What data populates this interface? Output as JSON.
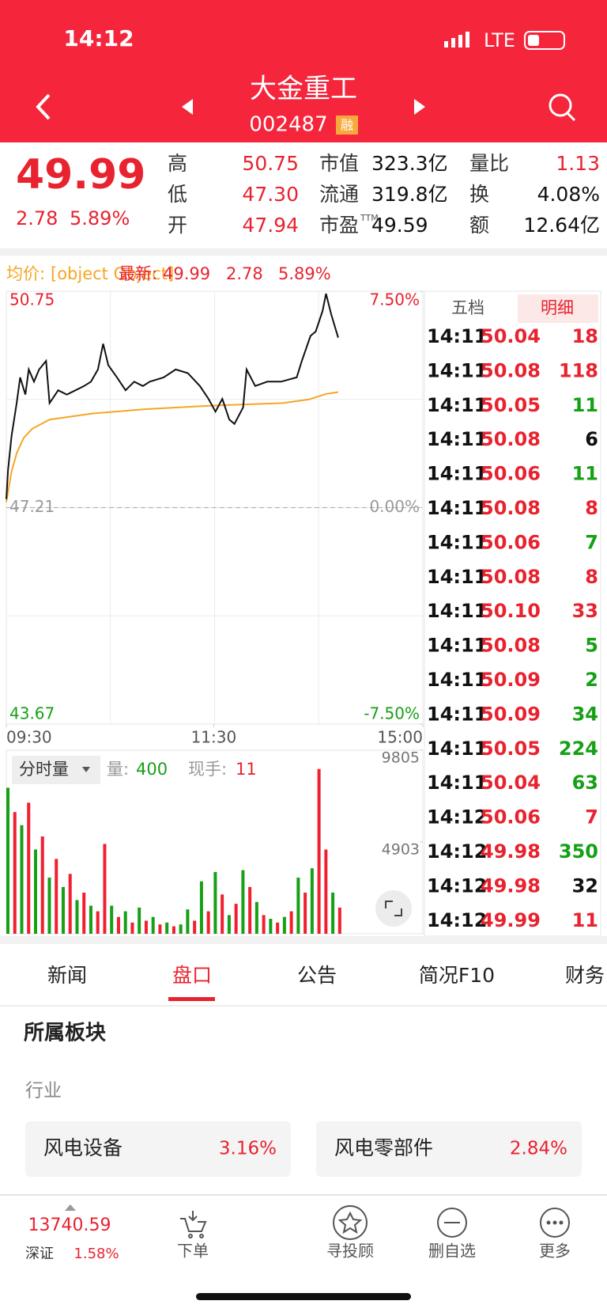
{
  "status": {
    "time": "14:12",
    "network": "LTE"
  },
  "header": {
    "title": "大金重工",
    "code": "002487",
    "badge": "融"
  },
  "quote": {
    "price": "49.99",
    "change": "2.78",
    "pct": "5.89%",
    "stats": [
      {
        "label": "高",
        "value": "50.75"
      },
      {
        "label": "低",
        "value": "47.30"
      },
      {
        "label": "开",
        "value": "47.94"
      },
      {
        "label": "市值",
        "value": "323.3亿"
      },
      {
        "label": "流通",
        "value": "319.8亿"
      },
      {
        "label": "市盈",
        "sup": "TTM",
        "value": "49.59"
      },
      {
        "label": "量比",
        "value": "1.13"
      },
      {
        "label": "换",
        "value": "4.08%"
      },
      {
        "label": "额",
        "value": "12.64亿"
      }
    ]
  },
  "chart": {
    "avg_label": "均价:",
    "avg": {
      "color": "#f5a623",
      "x": [
        0,
        3,
        6,
        10,
        15,
        25,
        50,
        80,
        120,
        160,
        175,
        185,
        192
      ],
      "values": [
        47.3,
        47.8,
        48.1,
        48.35,
        48.5,
        48.65,
        48.75,
        48.82,
        48.88,
        48.92,
        48.98,
        49.07,
        49.1
      ]
    },
    "latest_label": "最新:",
    "latest": "49.99",
    "change": "2.78",
    "pct": "5.89%",
    "xlim": [
      0,
      241
    ],
    "xticks": [
      {
        "value": 0,
        "label": "09:30"
      },
      {
        "value": 120,
        "label": "11:30"
      },
      {
        "value": 241,
        "label": "15:00"
      }
    ],
    "ylim": [
      43.67,
      50.75
    ],
    "yticks": [
      50.75,
      47.21,
      43.67
    ],
    "y2lim": [
      -7.5,
      7.5
    ],
    "y2ticks": [
      {
        "value": 7.5,
        "label": "7.50%"
      },
      {
        "value": 0,
        "label": "0.00%"
      },
      {
        "value": -7.5,
        "label": "-7.50%"
      }
    ],
    "price": {
      "color": "#111111",
      "x": [
        0,
        1,
        3,
        6,
        8,
        11,
        13,
        16,
        19,
        23,
        25,
        30,
        35,
        40,
        45,
        49,
        53,
        56,
        59,
        64,
        69,
        74,
        79,
        83,
        91,
        98,
        105,
        112,
        117,
        121,
        125,
        129,
        132,
        137,
        139,
        144,
        151,
        159,
        168,
        171,
        176,
        179,
        183,
        185,
        188,
        192
      ],
      "values": [
        47.35,
        47.83,
        48.38,
        48.92,
        49.34,
        49.06,
        49.47,
        49.27,
        49.47,
        49.61,
        48.92,
        49.13,
        49.06,
        49.13,
        49.2,
        49.27,
        49.47,
        49.89,
        49.54,
        49.34,
        49.13,
        49.27,
        49.2,
        49.27,
        49.34,
        49.47,
        49.41,
        49.2,
        48.99,
        48.78,
        48.99,
        48.65,
        48.58,
        48.85,
        49.47,
        49.2,
        49.27,
        49.27,
        49.34,
        49.61,
        50.02,
        50.09,
        50.43,
        50.71,
        50.37,
        49.99
      ]
    },
    "volume": {
      "label": "分时量",
      "vol_label": "量:",
      "vol": "400",
      "hand_label": "现手:",
      "hand": "11",
      "ylim": [
        0,
        9805
      ],
      "yticks": [
        9805,
        4903
      ],
      "x": [
        0,
        4,
        8,
        12,
        16,
        20,
        24,
        28,
        32,
        36,
        40,
        44,
        48,
        52,
        56,
        60,
        64,
        68,
        72,
        76,
        80,
        84,
        88,
        92,
        96,
        100,
        104,
        108,
        112,
        116,
        120,
        124,
        128,
        132,
        136,
        140,
        144,
        148,
        152,
        156,
        160,
        164,
        168,
        172,
        176,
        180,
        184,
        188,
        192
      ],
      "values": [
        7800,
        6500,
        5800,
        7000,
        4500,
        5200,
        3000,
        4000,
        2500,
        3200,
        1800,
        2200,
        1500,
        1200,
        4800,
        1500,
        900,
        1200,
        600,
        1400,
        700,
        900,
        500,
        600,
        400,
        500,
        1300,
        700,
        2800,
        1200,
        3300,
        2100,
        1000,
        1600,
        3400,
        2500,
        1700,
        1000,
        800,
        600,
        900,
        1200,
        3000,
        2200,
        3500,
        8800,
        4500,
        2200,
        1400
      ],
      "colors": [
        "#16a016",
        "#f02030",
        "#16a016",
        "#f02030",
        "#16a016",
        "#f02030",
        "#16a016",
        "#f02030",
        "#16a016",
        "#f02030",
        "#16a016",
        "#f02030",
        "#16a016",
        "#f02030",
        "#f02030",
        "#16a016",
        "#f02030",
        "#16a016",
        "#f02030",
        "#16a016",
        "#f02030",
        "#16a016",
        "#f02030",
        "#16a016",
        "#f02030",
        "#16a016",
        "#16a016",
        "#f02030",
        "#16a016",
        "#f02030",
        "#16a016",
        "#f02030",
        "#16a016",
        "#f02030",
        "#16a016",
        "#f02030",
        "#16a016",
        "#f02030",
        "#16a016",
        "#f02030",
        "#16a016",
        "#f02030",
        "#16a016",
        "#f02030",
        "#16a016",
        "#f02030",
        "#f02030",
        "#16a016",
        "#f02030"
      ]
    }
  },
  "trades": {
    "tabs": [
      "五档",
      "明细"
    ],
    "rows": [
      {
        "time": "14:11",
        "price": "50.04",
        "vol": "18",
        "color": "#e8232f"
      },
      {
        "time": "14:11",
        "price": "50.08",
        "vol": "118",
        "color": "#e8232f"
      },
      {
        "time": "14:11",
        "price": "50.05",
        "vol": "11",
        "color": "#16a016"
      },
      {
        "time": "14:11",
        "price": "50.08",
        "vol": "6",
        "color": "#111111"
      },
      {
        "time": "14:11",
        "price": "50.06",
        "vol": "11",
        "color": "#16a016"
      },
      {
        "time": "14:11",
        "price": "50.08",
        "vol": "8",
        "color": "#e8232f"
      },
      {
        "time": "14:11",
        "price": "50.06",
        "vol": "7",
        "color": "#16a016"
      },
      {
        "time": "14:11",
        "price": "50.08",
        "vol": "8",
        "color": "#e8232f"
      },
      {
        "time": "14:11",
        "price": "50.10",
        "vol": "33",
        "color": "#e8232f"
      },
      {
        "time": "14:11",
        "price": "50.08",
        "vol": "5",
        "color": "#16a016"
      },
      {
        "time": "14:11",
        "price": "50.09",
        "vol": "2",
        "color": "#16a016"
      },
      {
        "time": "14:11",
        "price": "50.09",
        "vol": "34",
        "color": "#16a016"
      },
      {
        "time": "14:11",
        "price": "50.05",
        "vol": "224",
        "color": "#16a016"
      },
      {
        "time": "14:11",
        "price": "50.04",
        "vol": "63",
        "color": "#16a016"
      },
      {
        "time": "14:12",
        "price": "50.06",
        "vol": "7",
        "color": "#e8232f"
      },
      {
        "time": "14:12",
        "price": "49.98",
        "vol": "350",
        "color": "#16a016"
      },
      {
        "time": "14:12",
        "price": "49.98",
        "vol": "32",
        "color": "#111111"
      },
      {
        "time": "14:12",
        "price": "49.99",
        "vol": "11",
        "color": "#e8232f"
      }
    ]
  },
  "tabs": [
    "新闻",
    "盘口",
    "公告",
    "简况F10",
    "财务"
  ],
  "sectors": {
    "title": "所属板块",
    "group": "行业",
    "items": [
      {
        "name": "风电设备",
        "pct": "3.16%"
      },
      {
        "name": "风电零部件",
        "pct": "2.84%"
      }
    ]
  },
  "nav": {
    "index": {
      "value": "13740.59",
      "name": "深证",
      "pct": "1.58%"
    },
    "items": [
      "下单",
      "寻投顾",
      "删自选",
      "更多"
    ]
  }
}
